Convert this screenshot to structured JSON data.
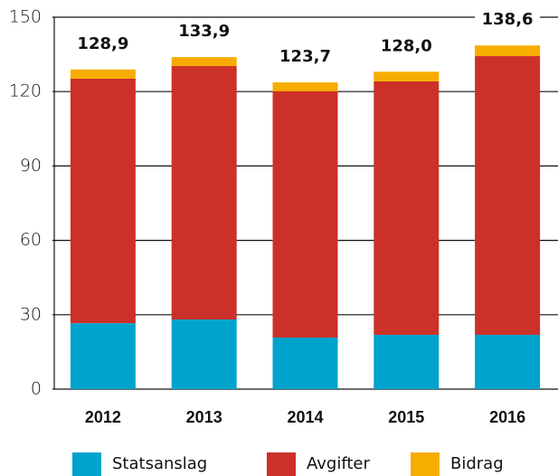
{
  "chart_data": {
    "type": "stacked_bar",
    "categories": [
      "2012",
      "2013",
      "2014",
      "2015",
      "2016"
    ],
    "series": [
      {
        "name": "Statsanslag",
        "color": "#00a3cc",
        "values": [
          26.6,
          28.1,
          20.8,
          21.9,
          21.9
        ]
      },
      {
        "name": "Avgifter",
        "color": "#cc3129",
        "values": [
          98.6,
          102.2,
          99.3,
          102.2,
          112.4
        ]
      },
      {
        "name": "Bidrag",
        "color": "#f7ac00",
        "values": [
          3.7,
          3.6,
          3.6,
          3.9,
          4.3
        ]
      }
    ],
    "totals": [
      128.9,
      133.9,
      123.7,
      128.0,
      138.6
    ],
    "total_labels": [
      "128,9",
      "133,9",
      "123,7",
      "128,0",
      "138,6"
    ],
    "ylim": [
      0,
      150
    ],
    "yticks": [
      0,
      30,
      60,
      90,
      120,
      150
    ],
    "grid": true
  }
}
